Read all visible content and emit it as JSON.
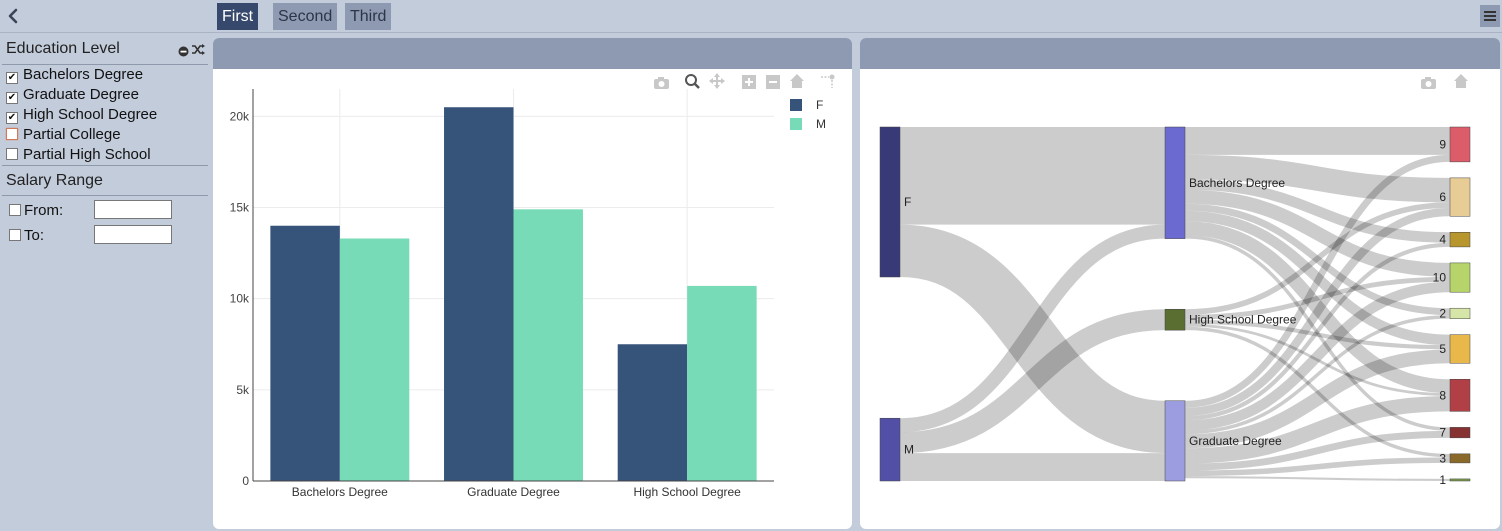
{
  "header": {
    "tabs": [
      {
        "label": "First",
        "active": true
      },
      {
        "label": "Second",
        "active": false
      },
      {
        "label": "Third",
        "active": false
      }
    ]
  },
  "sidebar": {
    "education": {
      "title": "Education Level",
      "items": [
        {
          "label": "Bachelors Degree",
          "checked": true
        },
        {
          "label": "Graduate Degree",
          "checked": true
        },
        {
          "label": "High School Degree",
          "checked": true
        },
        {
          "label": "Partial College",
          "checked": false
        },
        {
          "label": "Partial High School",
          "checked": false
        }
      ]
    },
    "salary": {
      "title": "Salary Range",
      "from_label": "From:",
      "to_label": "To:",
      "from_value": "",
      "to_value": ""
    }
  },
  "colors": {
    "F": "#36537a",
    "M": "#76dbb6",
    "topbar": "#c3ccdb",
    "panel_header": "#8e9ab2",
    "active_tab": "#36486b"
  },
  "chart_data": [
    {
      "type": "bar",
      "categories": [
        "Bachelors Degree",
        "Graduate Degree",
        "High School Degree"
      ],
      "series": [
        {
          "name": "F",
          "values": [
            14000,
            20500,
            7500
          ]
        },
        {
          "name": "M",
          "values": [
            13300,
            14900,
            10700
          ]
        }
      ],
      "ylim": [
        0,
        21500
      ],
      "yticks": [
        0,
        5000,
        10000,
        15000,
        20000
      ],
      "ytick_labels": [
        "0",
        "5k",
        "10k",
        "15k",
        "20k"
      ],
      "grid": true,
      "legend": "top-right"
    },
    {
      "type": "sankey",
      "nodes": [
        {
          "label": "F",
          "color": "#383a78"
        },
        {
          "label": "M",
          "color": "#5150a6"
        },
        {
          "label": "Bachelors Degree",
          "color": "#6a6ad0"
        },
        {
          "label": "High School Degree",
          "color": "#5b6e32"
        },
        {
          "label": "Graduate Degree",
          "color": "#9c9ce0"
        },
        {
          "label": "9",
          "color": "#dc5c6a"
        },
        {
          "label": "6",
          "color": "#e8cc96"
        },
        {
          "label": "4",
          "color": "#b8962e"
        },
        {
          "label": "10",
          "color": "#b6d46a"
        },
        {
          "label": "2",
          "color": "#d6e6a8"
        },
        {
          "label": "5",
          "color": "#e8b84a"
        },
        {
          "label": "8",
          "color": "#b04046"
        },
        {
          "label": "7",
          "color": "#863232"
        },
        {
          "label": "3",
          "color": "#8a6a2a"
        },
        {
          "label": "1",
          "color": "#7a9a4a"
        }
      ],
      "links": [
        {
          "source": "F",
          "target": "Bachelors Degree",
          "value": 14000
        },
        {
          "source": "F",
          "target": "Graduate Degree",
          "value": 7500
        },
        {
          "source": "M",
          "target": "Bachelors Degree",
          "value": 2000
        },
        {
          "source": "M",
          "target": "High School Degree",
          "value": 3000
        },
        {
          "source": "M",
          "target": "Graduate Degree",
          "value": 4000
        },
        {
          "source": "Bachelors Degree",
          "target": "9",
          "value": 4000
        },
        {
          "source": "Bachelors Degree",
          "target": "6",
          "value": 3500
        },
        {
          "source": "Bachelors Degree",
          "target": "4",
          "value": 1500
        },
        {
          "source": "Bachelors Degree",
          "target": "10",
          "value": 2000
        },
        {
          "source": "Bachelors Degree",
          "target": "2",
          "value": 1000
        },
        {
          "source": "Bachelors Degree",
          "target": "5",
          "value": 1500
        },
        {
          "source": "Bachelors Degree",
          "target": "8",
          "value": 2000
        },
        {
          "source": "Bachelors Degree",
          "target": "7",
          "value": 500
        },
        {
          "source": "High School Degree",
          "target": "6",
          "value": 800
        },
        {
          "source": "High School Degree",
          "target": "10",
          "value": 700
        },
        {
          "source": "High School Degree",
          "target": "5",
          "value": 600
        },
        {
          "source": "High School Degree",
          "target": "8",
          "value": 400
        },
        {
          "source": "High School Degree",
          "target": "3",
          "value": 500
        },
        {
          "source": "Graduate Degree",
          "target": "9",
          "value": 1000
        },
        {
          "source": "Graduate Degree",
          "target": "6",
          "value": 1200
        },
        {
          "source": "Graduate Degree",
          "target": "4",
          "value": 600
        },
        {
          "source": "Graduate Degree",
          "target": "10",
          "value": 1500
        },
        {
          "source": "Graduate Degree",
          "target": "2",
          "value": 500
        },
        {
          "source": "Graduate Degree",
          "target": "5",
          "value": 2000
        },
        {
          "source": "Graduate Degree",
          "target": "8",
          "value": 2200
        },
        {
          "source": "Graduate Degree",
          "target": "7",
          "value": 1000
        },
        {
          "source": "Graduate Degree",
          "target": "3",
          "value": 800
        },
        {
          "source": "Graduate Degree",
          "target": "1",
          "value": 300
        }
      ]
    }
  ]
}
